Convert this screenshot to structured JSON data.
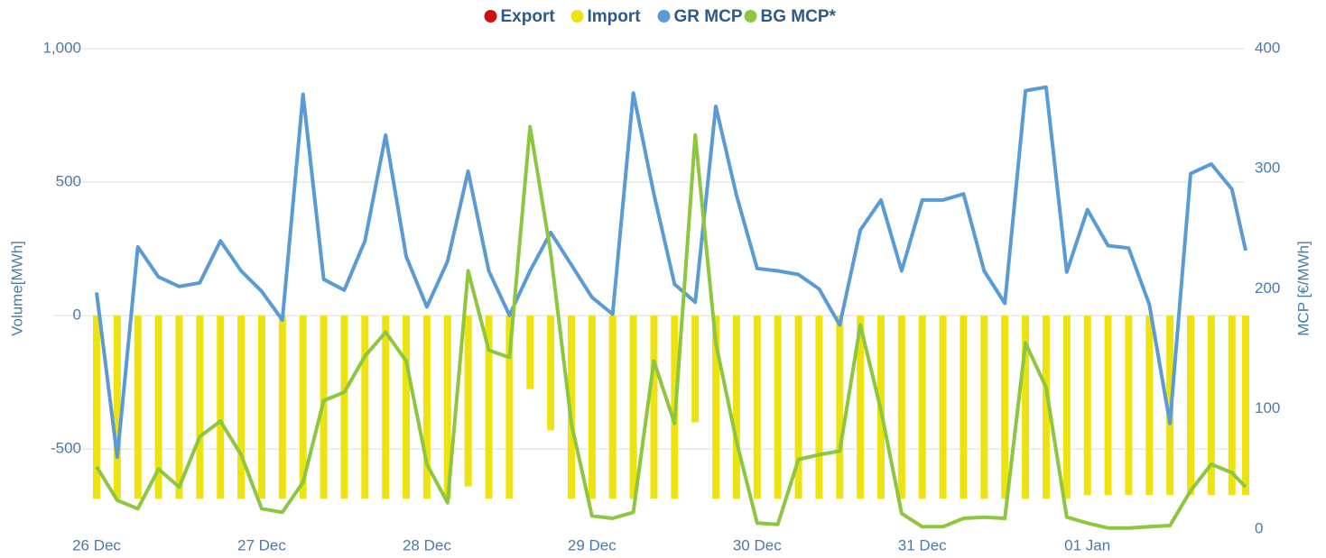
{
  "chart_data": {
    "type": "combo",
    "legend": "top",
    "y_label": "Volume[MWh]",
    "y2_label": "MCP [€/MWh]",
    "x": [
      0,
      3,
      6,
      9,
      12,
      15,
      18,
      21,
      24,
      27,
      30,
      33,
      36,
      39,
      42,
      45,
      48,
      51,
      54,
      57,
      60,
      63,
      66,
      69,
      72,
      75,
      78,
      81,
      84,
      87,
      90,
      93,
      96,
      99,
      102,
      105,
      108,
      111,
      114,
      117,
      120,
      123,
      126,
      129,
      132,
      135,
      138,
      141,
      144,
      147,
      150,
      153,
      156,
      159,
      162,
      165,
      167
    ],
    "xlim": [
      0,
      167
    ],
    "xticks": [
      {
        "value": 0,
        "label": "26 Dec"
      },
      {
        "value": 24,
        "label": "27 Dec"
      },
      {
        "value": 48,
        "label": "28 Dec"
      },
      {
        "value": 72,
        "label": "29 Dec"
      },
      {
        "value": 96,
        "label": "30 Dec"
      },
      {
        "value": 120,
        "label": "31 Dec"
      },
      {
        "value": 144,
        "label": "01 Jan"
      }
    ],
    "ylim": [
      -800,
      1000
    ],
    "yticks": [
      -500,
      0,
      500,
      {
        "value": 1000,
        "label": "1,000"
      }
    ],
    "y2lim": [
      0,
      400
    ],
    "y2ticks": [
      0,
      100,
      200,
      300,
      400
    ],
    "grid": true,
    "series": [
      {
        "name": "Export",
        "type": "bar",
        "color": "#cc1111",
        "values": [
          0,
          0,
          0,
          0,
          0,
          0,
          0,
          0,
          0,
          0,
          0,
          0,
          0,
          0,
          0,
          0,
          0,
          0,
          0,
          0,
          0,
          0,
          0,
          0,
          0,
          0,
          0,
          0,
          0,
          0,
          0,
          0,
          0,
          0,
          0,
          0,
          0,
          0,
          0,
          0,
          0,
          0,
          0,
          0,
          0,
          0,
          0,
          0,
          0,
          0,
          0,
          0,
          0,
          0,
          0,
          0,
          0
        ]
      },
      {
        "name": "Import",
        "type": "bar",
        "color": "#eee312",
        "values": [
          -686,
          -686,
          -686,
          -686,
          -686,
          -686,
          -686,
          -686,
          -686,
          -686,
          -686,
          -686,
          -686,
          -686,
          -686,
          -686,
          -686,
          -686,
          -640,
          -686,
          -686,
          -275,
          -430,
          -686,
          -686,
          -686,
          -686,
          -686,
          -686,
          -400,
          -686,
          -686,
          -686,
          -686,
          -686,
          -686,
          -686,
          -686,
          -686,
          -686,
          -686,
          -686,
          -686,
          -686,
          -686,
          -686,
          -686,
          -686,
          -672,
          -672,
          -672,
          -672,
          -672,
          -672,
          -672,
          -672,
          -672
        ]
      },
      {
        "name": "GR MCP",
        "type": "line",
        "axis": "y2",
        "color": "#5b9bd5",
        "values": [
          197,
          60,
          235,
          210,
          202,
          205,
          240,
          215,
          198,
          174,
          362,
          208,
          199,
          240,
          328,
          227,
          185,
          223,
          298,
          215,
          178,
          215,
          247,
          220,
          193,
          179,
          363,
          279,
          204,
          189,
          352,
          278,
          217,
          215,
          212,
          200,
          170,
          249,
          274,
          215,
          274,
          274,
          279,
          215,
          188,
          365,
          368,
          214,
          266,
          236,
          234,
          187,
          88,
          296,
          304,
          283,
          232
        ]
      },
      {
        "name": "BG MCP*",
        "type": "line",
        "axis": "y2",
        "color": "#8dc63f",
        "values": [
          52,
          24,
          17,
          50,
          35,
          77,
          90,
          62,
          17,
          14,
          39,
          107,
          114,
          144,
          164,
          140,
          54,
          22,
          215,
          149,
          143,
          335,
          230,
          88,
          11,
          9,
          14,
          140,
          88,
          328,
          155,
          73,
          5,
          4,
          58,
          62,
          65,
          170,
          99,
          13,
          2,
          2,
          9,
          10,
          9,
          155,
          118,
          10,
          5,
          1,
          1,
          2,
          3,
          32,
          54,
          47,
          35
        ]
      }
    ]
  }
}
